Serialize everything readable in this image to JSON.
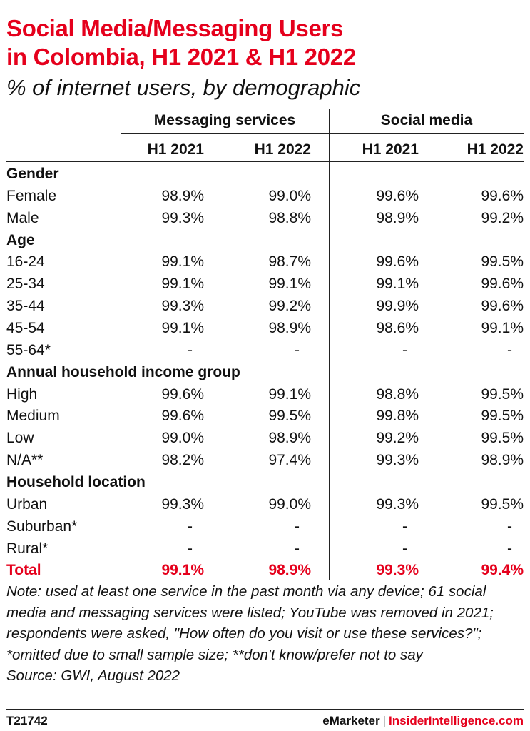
{
  "header": {
    "title_line1": "Social Media/Messaging Users",
    "title_line2": "in Colombia, H1 2021 & H1 2022",
    "subtitle": "% of internet users, by demographic"
  },
  "columns": {
    "group1": "Messaging services",
    "group2": "Social media",
    "h1": "H1 2021",
    "h2": "H1 2022",
    "h3": "H1 2021",
    "h4": "H1 2022"
  },
  "rows": [
    {
      "label": "Gender",
      "type": "section"
    },
    {
      "label": "Female",
      "type": "data",
      "v": [
        "98.9%",
        "99.0%",
        "99.6%",
        "99.6%"
      ]
    },
    {
      "label": "Male",
      "type": "data",
      "v": [
        "99.3%",
        "98.8%",
        "98.9%",
        "99.2%"
      ]
    },
    {
      "label": "Age",
      "type": "section"
    },
    {
      "label": "16-24",
      "type": "data",
      "v": [
        "99.1%",
        "98.7%",
        "99.6%",
        "99.5%"
      ]
    },
    {
      "label": "25-34",
      "type": "data",
      "v": [
        "99.1%",
        "99.1%",
        "99.1%",
        "99.6%"
      ]
    },
    {
      "label": "35-44",
      "type": "data",
      "v": [
        "99.3%",
        "99.2%",
        "99.9%",
        "99.6%"
      ]
    },
    {
      "label": "45-54",
      "type": "data",
      "v": [
        "99.1%",
        "98.9%",
        "98.6%",
        "99.1%"
      ]
    },
    {
      "label": "55-64*",
      "type": "data",
      "v": [
        "-",
        "-",
        "-",
        "-"
      ]
    },
    {
      "label": "Annual household income group",
      "type": "section"
    },
    {
      "label": "High",
      "type": "data",
      "v": [
        "99.6%",
        "99.1%",
        "98.8%",
        "99.5%"
      ]
    },
    {
      "label": "Medium",
      "type": "data",
      "v": [
        "99.6%",
        "99.5%",
        "99.8%",
        "99.5%"
      ]
    },
    {
      "label": "Low",
      "type": "data",
      "v": [
        "99.0%",
        "98.9%",
        "99.2%",
        "99.5%"
      ]
    },
    {
      "label": "N/A**",
      "type": "data",
      "v": [
        "98.2%",
        "97.4%",
        "99.3%",
        "98.9%"
      ]
    },
    {
      "label": "Household location",
      "type": "section"
    },
    {
      "label": "Urban",
      "type": "data",
      "v": [
        "99.3%",
        "99.0%",
        "99.3%",
        "99.5%"
      ]
    },
    {
      "label": "Suburban*",
      "type": "data",
      "v": [
        "-",
        "-",
        "-",
        "-"
      ]
    },
    {
      "label": "Rural*",
      "type": "data",
      "v": [
        "-",
        "-",
        "-",
        "-"
      ]
    },
    {
      "label": "Total",
      "type": "total",
      "v": [
        "99.1%",
        "98.9%",
        "99.3%",
        "99.4%"
      ]
    }
  ],
  "notes": {
    "note": "Note: used at least one service in the past month via any device; 61 social media and messaging services were listed; YouTube was removed in 2021; respondents were asked, \"How often do you visit or use these services?\"; *omitted due to small sample size; **don't know/prefer not to say",
    "source": "Source: GWI, August 2022"
  },
  "footer": {
    "chart_id": "T21742",
    "brand1": "eMarketer",
    "separator": "|",
    "brand2": "InsiderIntelligence.com"
  },
  "colors": {
    "accent": "#e5001c",
    "text": "#111111",
    "rule": "#222222"
  },
  "chart_data": {
    "type": "table",
    "title": "Social Media/Messaging Users in Colombia, H1 2021 & H1 2022",
    "subtitle": "% of internet users, by demographic",
    "column_groups": [
      "Messaging services",
      "Social media"
    ],
    "columns": [
      "H1 2021",
      "H1 2022",
      "H1 2021",
      "H1 2022"
    ],
    "sections": [
      {
        "name": "Gender",
        "rows": [
          {
            "label": "Female",
            "values": [
              98.9,
              99.0,
              99.6,
              99.6
            ]
          },
          {
            "label": "Male",
            "values": [
              99.3,
              98.8,
              98.9,
              99.2
            ]
          }
        ]
      },
      {
        "name": "Age",
        "rows": [
          {
            "label": "16-24",
            "values": [
              99.1,
              98.7,
              99.6,
              99.5
            ]
          },
          {
            "label": "25-34",
            "values": [
              99.1,
              99.1,
              99.1,
              99.6
            ]
          },
          {
            "label": "35-44",
            "values": [
              99.3,
              99.2,
              99.9,
              99.6
            ]
          },
          {
            "label": "45-54",
            "values": [
              99.1,
              98.9,
              98.6,
              99.1
            ]
          },
          {
            "label": "55-64*",
            "values": [
              null,
              null,
              null,
              null
            ]
          }
        ]
      },
      {
        "name": "Annual household income group",
        "rows": [
          {
            "label": "High",
            "values": [
              99.6,
              99.1,
              98.8,
              99.5
            ]
          },
          {
            "label": "Medium",
            "values": [
              99.6,
              99.5,
              99.8,
              99.5
            ]
          },
          {
            "label": "Low",
            "values": [
              99.0,
              98.9,
              99.2,
              99.5
            ]
          },
          {
            "label": "N/A**",
            "values": [
              98.2,
              97.4,
              99.3,
              98.9
            ]
          }
        ]
      },
      {
        "name": "Household location",
        "rows": [
          {
            "label": "Urban",
            "values": [
              99.3,
              99.0,
              99.3,
              99.5
            ]
          },
          {
            "label": "Suburban*",
            "values": [
              null,
              null,
              null,
              null
            ]
          },
          {
            "label": "Rural*",
            "values": [
              null,
              null,
              null,
              null
            ]
          }
        ]
      }
    ],
    "total": {
      "label": "Total",
      "values": [
        99.1,
        98.9,
        99.3,
        99.4
      ]
    }
  }
}
